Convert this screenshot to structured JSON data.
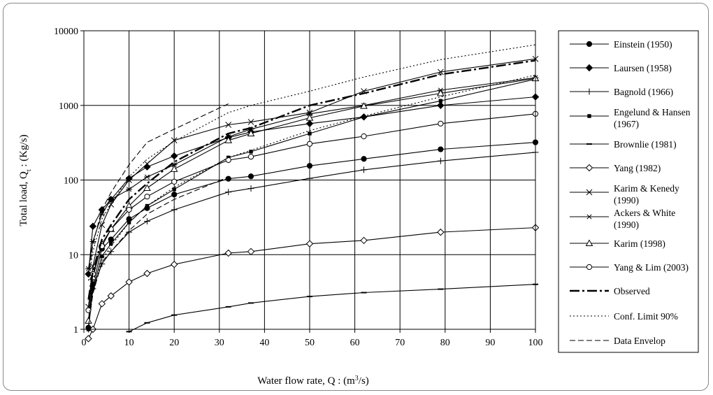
{
  "chart_data": {
    "type": "line",
    "xlabel": "Water flow rate, Q : (m³/s)",
    "ylabel": "Total load, Qₜ : (Kg/s)",
    "x_scale": "linear",
    "y_scale": "log",
    "xlim": [
      0,
      100
    ],
    "ylim": [
      1,
      10000
    ],
    "x_ticks": [
      0,
      10,
      20,
      30,
      40,
      50,
      60,
      70,
      80,
      90,
      100
    ],
    "x_tick_labels": [
      "0",
      "10",
      "20",
      "30",
      "40",
      "50",
      "60",
      "70",
      "80",
      "90",
      "100"
    ],
    "y_ticks": [
      1,
      10,
      100,
      1000,
      10000
    ],
    "y_tick_labels": [
      "1",
      "10",
      "100",
      "1000",
      "10000"
    ],
    "grid": true,
    "legend_position": "right",
    "series": [
      {
        "name": "Einstein (1950)",
        "marker": "circle-filled",
        "dash": "solid",
        "x": [
          1,
          2,
          4,
          6,
          10,
          14,
          20,
          32,
          37,
          50,
          62,
          79,
          100
        ],
        "y": [
          1.05,
          4,
          12,
          16,
          30,
          42,
          64,
          104,
          112,
          155,
          192,
          258,
          320
        ]
      },
      {
        "name": "Laursen (1958)",
        "marker": "diamond-filled",
        "dash": "solid",
        "x": [
          1,
          2,
          4,
          6,
          10,
          14,
          20,
          32,
          37,
          50,
          62,
          79,
          100
        ],
        "y": [
          5.5,
          24,
          40,
          55,
          105,
          150,
          210,
          370,
          440,
          570,
          700,
          1000,
          1300
        ]
      },
      {
        "name": "Bagnold (1966)",
        "marker": "plus",
        "dash": "solid",
        "x": [
          1,
          2,
          4,
          6,
          10,
          14,
          20,
          32,
          37,
          50,
          62,
          79,
          100
        ],
        "y": [
          1.0,
          3.5,
          7.5,
          11,
          20,
          28,
          40,
          69,
          77,
          105,
          137,
          180,
          235
        ]
      },
      {
        "name": "Engelund & Hansen (1967)",
        "marker": "square-filled",
        "dash": "solid",
        "x": [
          1,
          2,
          4,
          6,
          10,
          14,
          20,
          32,
          37,
          50,
          62,
          79,
          100
        ],
        "y": [
          1.0,
          3.6,
          9.5,
          14,
          27,
          45,
          75,
          200,
          240,
          420,
          700,
          1150,
          2250
        ]
      },
      {
        "name": "Brownlie (1981)",
        "marker": "dash",
        "dash": "solid",
        "x": [
          10,
          14,
          20,
          32,
          37,
          50,
          62,
          79,
          100
        ],
        "y": [
          0.93,
          1.22,
          1.55,
          2.0,
          2.25,
          2.75,
          3.1,
          3.45,
          4.0
        ]
      },
      {
        "name": "Yang (1982)",
        "marker": "diamond-open",
        "dash": "solid",
        "x": [
          1,
          2,
          4,
          6,
          10,
          14,
          20,
          32,
          37,
          50,
          62,
          79,
          100
        ],
        "y": [
          0.75,
          1.0,
          2.2,
          2.8,
          4.3,
          5.6,
          7.4,
          10.5,
          11,
          14,
          15.5,
          20,
          23
        ]
      },
      {
        "name": "Karim & Kenedy (1990)",
        "marker": "x",
        "dash": "solid",
        "x": [
          1,
          2,
          4,
          6,
          10,
          14,
          20,
          32,
          37,
          50,
          62,
          79,
          100
        ],
        "y": [
          2,
          7,
          25,
          47,
          100,
          165,
          340,
          550,
          600,
          800,
          1550,
          2800,
          4200
        ]
      },
      {
        "name": "Ackers & White (1990)",
        "marker": "asterisk",
        "dash": "solid",
        "x": [
          1,
          2,
          4,
          6,
          10,
          14,
          20,
          32,
          37,
          50,
          62,
          79,
          100
        ],
        "y": [
          6.5,
          15,
          35,
          55,
          75,
          110,
          160,
          380,
          480,
          770,
          1000,
          1600,
          2350
        ]
      },
      {
        "name": "Karim (1998)",
        "marker": "triangle-open",
        "dash": "solid",
        "x": [
          1,
          2,
          4,
          6,
          10,
          14,
          20,
          32,
          37,
          50,
          62,
          79,
          100
        ],
        "y": [
          1.3,
          5,
          14,
          22,
          45,
          78,
          140,
          340,
          420,
          680,
          980,
          1450,
          2300
        ]
      },
      {
        "name": "Yang & Lim (2003)",
        "marker": "circle-open",
        "dash": "solid",
        "x": [
          1,
          2,
          4,
          6,
          10,
          14,
          20,
          32,
          37,
          50,
          62,
          79,
          100
        ],
        "y": [
          1.8,
          5.5,
          13,
          22,
          40,
          60,
          95,
          185,
          205,
          305,
          385,
          570,
          770
        ]
      },
      {
        "name": "Observed",
        "marker": "none",
        "dash": "dashdot",
        "x": [
          1,
          2,
          4,
          6,
          10,
          14,
          20,
          32,
          37,
          50,
          62,
          79,
          100
        ],
        "y": [
          2.5,
          6,
          16,
          25,
          55,
          90,
          175,
          420,
          500,
          1000,
          1450,
          2600,
          4000
        ]
      },
      {
        "name": "Conf. Limit 90% (upper)",
        "marker": "none",
        "dash": "dotted",
        "x": [
          1,
          2,
          4,
          6,
          10,
          14,
          20,
          32,
          37,
          50,
          62,
          79,
          100
        ],
        "y": [
          4.5,
          11,
          30,
          48,
          110,
          190,
          330,
          800,
          1000,
          1550,
          2400,
          4100,
          6500
        ]
      },
      {
        "name": "Conf. Limit 90% (lower)",
        "marker": "none",
        "dash": "dotted",
        "x": [
          1,
          2,
          4,
          6,
          10,
          14,
          20,
          32,
          37,
          50,
          62,
          79,
          100
        ],
        "y": [
          1.4,
          3.2,
          8.5,
          13,
          27,
          45,
          80,
          200,
          250,
          460,
          720,
          1300,
          2550
        ]
      },
      {
        "name": "Data Envelop (upper)",
        "marker": "none",
        "dash": "dashed",
        "x": [
          1,
          2,
          4,
          6,
          10,
          14,
          20,
          32
        ],
        "y": [
          5,
          14,
          40,
          68,
          160,
          320,
          480,
          1050
        ]
      },
      {
        "name": "Data Envelop (lower)",
        "marker": "none",
        "dash": "dashed",
        "x": [
          1,
          2,
          4,
          6,
          10,
          14,
          20,
          32
        ],
        "y": [
          1.1,
          3,
          8,
          11,
          21,
          35,
          55,
          110
        ]
      }
    ],
    "legend": [
      {
        "label": "Einstein (1950)",
        "marker": "circle-filled",
        "dash": "solid"
      },
      {
        "label": "Laursen (1958)",
        "marker": "diamond-filled",
        "dash": "solid"
      },
      {
        "label": "Bagnold (1966)",
        "marker": "plus",
        "dash": "solid"
      },
      {
        "label": "Engelund & Hansen",
        "label2": "(1967)",
        "marker": "square-filled",
        "dash": "solid"
      },
      {
        "label": "Brownlie (1981)",
        "marker": "dash",
        "dash": "solid"
      },
      {
        "label": "Yang (1982)",
        "marker": "diamond-open",
        "dash": "solid"
      },
      {
        "label": "Karim & Kenedy",
        "label2": "(1990)",
        "marker": "x",
        "dash": "solid"
      },
      {
        "label": "Ackers & White",
        "label2": "(1990)",
        "marker": "asterisk",
        "dash": "solid"
      },
      {
        "label": "Karim (1998)",
        "marker": "triangle-open",
        "dash": "solid"
      },
      {
        "label": "Yang & Lim (2003)",
        "marker": "circle-open",
        "dash": "solid"
      },
      {
        "label": "Observed",
        "marker": "none",
        "dash": "dashdot"
      },
      {
        "label": "Conf. Limit 90%",
        "marker": "none",
        "dash": "dotted"
      },
      {
        "label": "Data Envelop",
        "marker": "none",
        "dash": "dashed"
      }
    ]
  }
}
